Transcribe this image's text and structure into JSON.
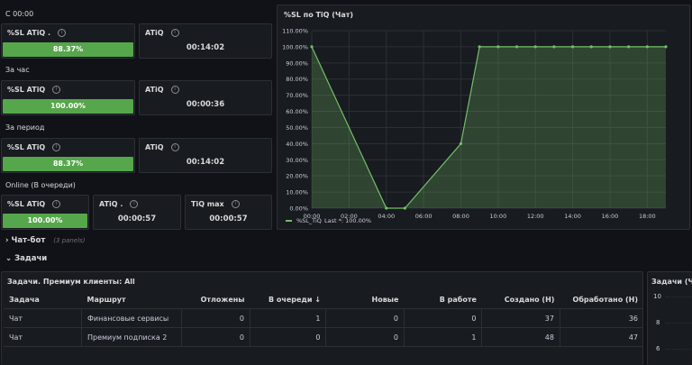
{
  "sections": {
    "since_midnight": "С 00:00",
    "hour": "За час",
    "period": "За период",
    "online": "Online (В очереди)"
  },
  "stats": {
    "sl_label": "%SL ATiQ .",
    "sl_label2": "%SL ATiQ",
    "atiq_label": "ATiQ",
    "atiq_label_dot": "ATiQ .",
    "tiq_max_label": "TiQ max",
    "since_sl": "88.37%",
    "since_atiq": "00:14:02",
    "hour_sl": "100.00%",
    "hour_atiq": "00:00:36",
    "period_sl": "88.37%",
    "period_atiq": "00:14:02",
    "online_sl": "100.00%",
    "online_atiq": "00:00:57",
    "online_tiq_max": "00:00:57",
    "info_glyph": "i",
    "bar_color": "#56a64b"
  },
  "chart_data": {
    "type": "area",
    "title": "%SL по TiQ (Чат)",
    "x_ticks": [
      "00:00",
      "02:00",
      "04:00",
      "06:00",
      "08:00",
      "10:00",
      "12:00",
      "14:00",
      "16:00",
      "18:00"
    ],
    "y_ticks": [
      "0.00%",
      "10.00%",
      "20.00%",
      "30.00%",
      "40.00%",
      "50.00%",
      "60.00%",
      "70.00%",
      "80.00%",
      "90.00%",
      "100.00%",
      "110.00%"
    ],
    "ylim": [
      0,
      110
    ],
    "xlim_hours": [
      0,
      19
    ],
    "grid": true,
    "legend_position": "bottom-left",
    "series": [
      {
        "name": "%SL_TiQ",
        "color": "#73bf69",
        "x_hours": [
          0,
          4,
          5,
          8,
          9,
          10,
          11,
          12,
          13,
          14,
          15,
          16,
          17,
          18,
          19
        ],
        "values": [
          100,
          0,
          0,
          40,
          100,
          100,
          100,
          100,
          100,
          100,
          100,
          100,
          100,
          100,
          100
        ]
      }
    ],
    "legend_stat": "Last *: 100.00%"
  },
  "rows": {
    "chatbot_label": "Чат-бот",
    "chatbot_count": "(3 panels)",
    "tasks_label": "Задачи"
  },
  "table": {
    "title": "Задачи. Премиум клиенты: All",
    "columns": [
      "Задача",
      "Маршрут",
      "Отложены",
      "В очереди",
      "Новые",
      "В работе",
      "Создано (Н)",
      "Обработано (Н)"
    ],
    "sort_glyph": "↓",
    "rows": [
      [
        "Чат",
        "Финансовые сервисы",
        "0",
        "1",
        "0",
        "0",
        "37",
        "36"
      ],
      [
        "Чат",
        "Премиум подписка 2",
        "0",
        "0",
        "0",
        "1",
        "48",
        "47"
      ]
    ]
  },
  "right_panel": {
    "title": "Задачи (Чат",
    "y_ticks": [
      "10",
      "8",
      "6"
    ]
  }
}
